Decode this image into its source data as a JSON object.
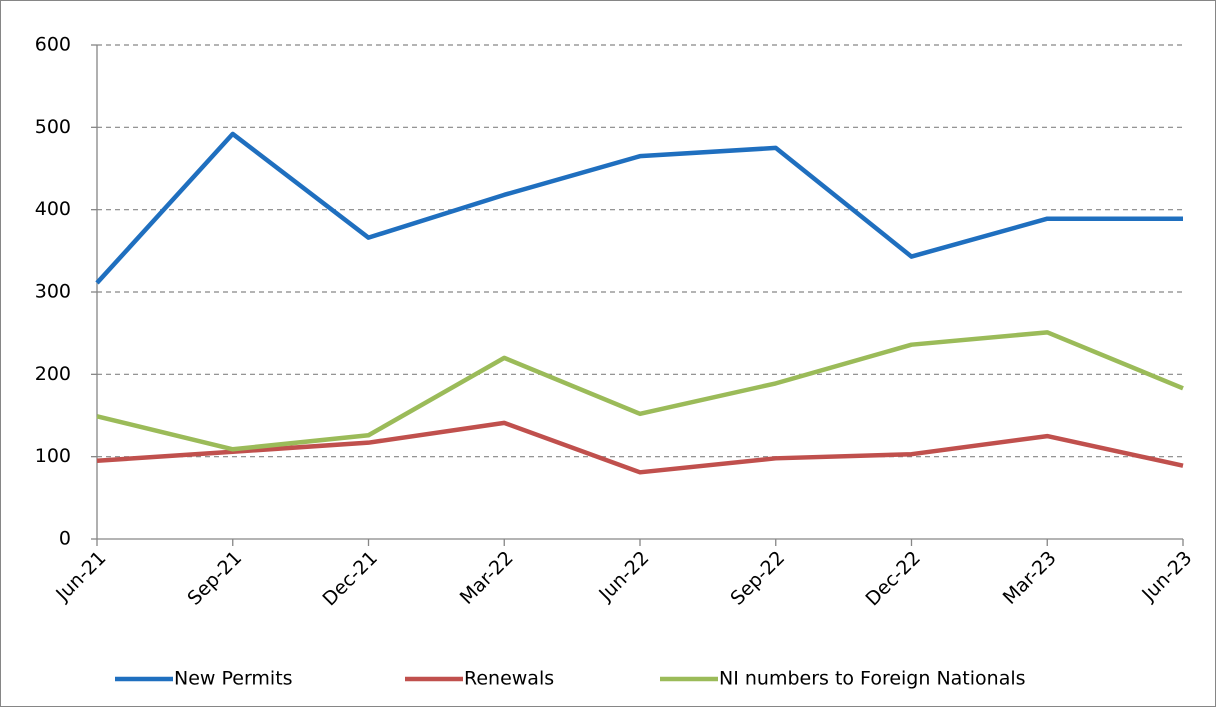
{
  "chart_data": {
    "type": "line",
    "categories": [
      "Jun-21",
      "Sep-21",
      "Dec-21",
      "Mar-22",
      "Jun-22",
      "Sep-22",
      "Dec-22",
      "Mar-23",
      "Jun-23"
    ],
    "series": [
      {
        "name": "New Permits",
        "color": "#1f6fbf",
        "values": [
          311,
          492,
          366,
          418,
          465,
          475,
          343,
          389,
          389
        ]
      },
      {
        "name": "Renewals",
        "color": "#c0504d",
        "values": [
          95,
          106,
          117,
          141,
          81,
          98,
          103,
          125,
          89
        ]
      },
      {
        "name": "NI numbers to Foreign Nationals",
        "color": "#9bbb59",
        "values": [
          149,
          109,
          126,
          220,
          152,
          189,
          236,
          251,
          183
        ]
      }
    ],
    "ylim": [
      0,
      600
    ],
    "yticks": [
      0,
      100,
      200,
      300,
      400,
      500,
      600
    ],
    "grid": true,
    "legend": "bottom"
  }
}
